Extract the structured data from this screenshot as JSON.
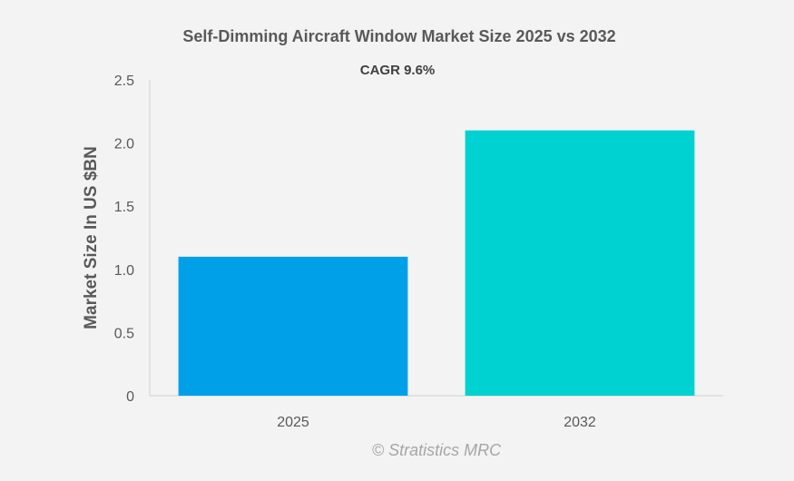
{
  "chart_data": {
    "type": "bar",
    "title": "Self-Dimming Aircraft Window Market Size 2025 vs 2032",
    "subtitle": "CAGR 9.6%",
    "ylabel": "Market Size In US $BN",
    "xlabel": "",
    "categories": [
      "2025",
      "2032"
    ],
    "values": [
      1.1,
      2.1
    ],
    "colors": [
      "#00a0e9",
      "#00d1d1"
    ],
    "ylim": [
      0,
      2.5
    ],
    "yticks": [
      0,
      0.5,
      1.0,
      1.5,
      2.0,
      2.5
    ],
    "ytick_labels": [
      "0",
      "0.5",
      "1.0",
      "1.5",
      "2.0",
      "2.5"
    ],
    "grid": false,
    "legend": "none"
  },
  "watermark": "© Stratistics MRC"
}
